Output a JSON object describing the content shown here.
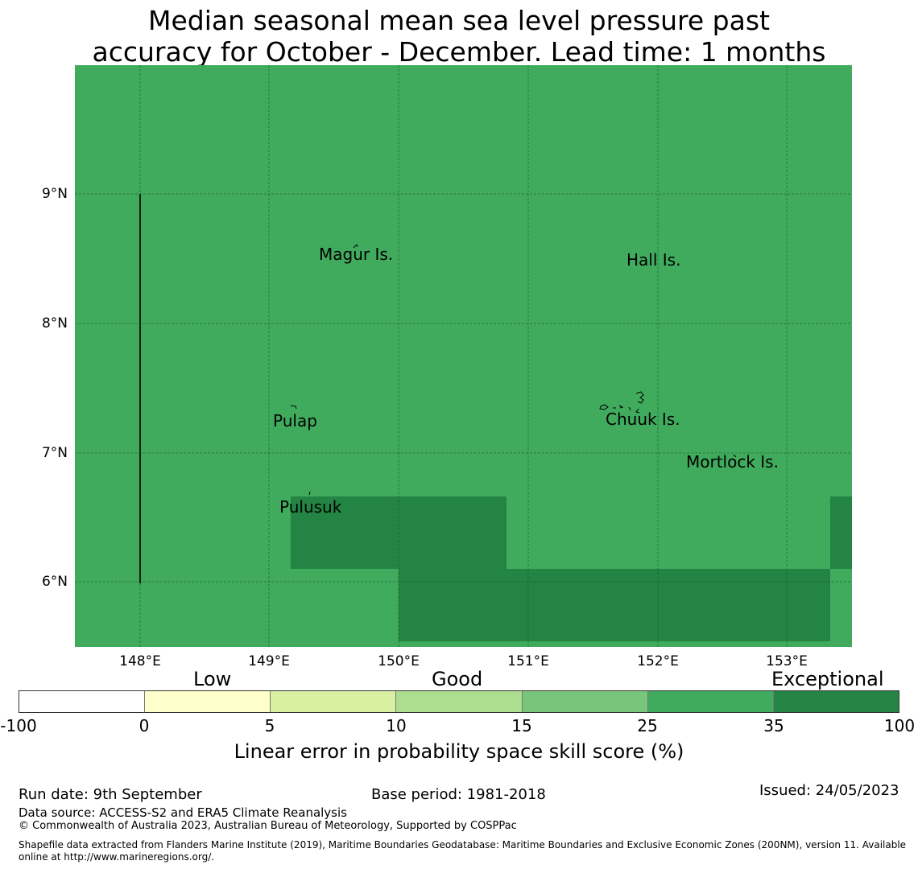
{
  "title_line1": "Median seasonal mean sea level pressure past",
  "title_line2": "accuracy for October - December. Lead time: 1 months",
  "map": {
    "background_color": "#41ab5d",
    "exceptional_color": "#238443",
    "lat_labels": [
      "9°N",
      "8°N",
      "7°N",
      "6°N"
    ],
    "lon_labels": [
      "148°E",
      "149°E",
      "150°E",
      "151°E",
      "152°E",
      "153°E"
    ],
    "places": [
      "Magur Is.",
      "Hall Is.",
      "Pulap",
      "Chuuk Is.",
      "Mortlock Is.",
      "Pulusuk"
    ]
  },
  "colorbar": {
    "category_labels": [
      "Low",
      "Good",
      "Exceptional"
    ],
    "colors": [
      "#ffffff",
      "#ffffcc",
      "#d9f0a3",
      "#addd8e",
      "#78c679",
      "#41ab5d",
      "#238443"
    ],
    "tick_labels": [
      "-100",
      "0",
      "5",
      "10",
      "15",
      "25",
      "35",
      "100"
    ],
    "title": "Linear error in probability space skill score (%)"
  },
  "footer": {
    "run_date": "Run date: 9th September",
    "base_period": "Base period: 1981-2018",
    "issued": "Issued: 24/05/2023",
    "data_source": "Data source: ACCESS-S2 and ERA5 Climate Reanalysis",
    "copyright": "© Commonwealth of Australia 2023, Australian Bureau of Meteorology, Supported by COSPPac",
    "shapefile_line1": "Shapefile data extracted from Flanders Marine Institute (2019), Maritime Boundaries Geodatabase: Maritime Boundaries and Exclusive Economic Zones (200NM), version 11. Available",
    "shapefile_line2": "online at http://www.marineregions.org/."
  }
}
